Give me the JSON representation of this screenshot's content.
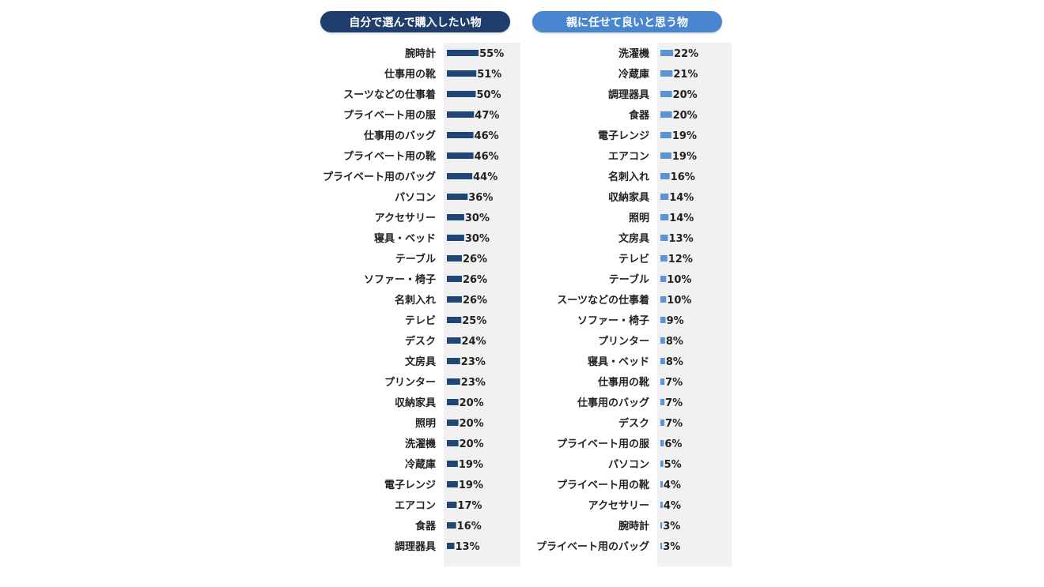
{
  "colors": {
    "left_bar": "#1e4676",
    "right_bar": "#5b93d6",
    "plot_bg": "#f1f1f1",
    "left_title_bg": "#1e3f6e",
    "right_title_bg": "#4a86cf"
  },
  "chart_data": [
    {
      "type": "bar",
      "orientation": "horizontal",
      "title": "自分で選んで購入したい物",
      "value_suffix": "%",
      "xlim": [
        0,
        100
      ],
      "grid": false,
      "categories": [
        "腕時計",
        "仕事用の靴",
        "スーツなどの仕事着",
        "プライベート用の服",
        "仕事用のバッグ",
        "プライベート用の靴",
        "プライベート用のバッグ",
        "パソコン",
        "アクセサリー",
        "寝具・ベッド",
        "テーブル",
        "ソファー・椅子",
        "名刺入れ",
        "テレビ",
        "デスク",
        "文房具",
        "プリンター",
        "収納家具",
        "照明",
        "洗濯機",
        "冷蔵庫",
        "電子レンジ",
        "エアコン",
        "食器",
        "調理器具"
      ],
      "values": [
        55,
        51,
        50,
        47,
        46,
        46,
        44,
        36,
        30,
        30,
        26,
        26,
        26,
        25,
        24,
        23,
        23,
        20,
        20,
        20,
        19,
        19,
        17,
        16,
        13
      ]
    },
    {
      "type": "bar",
      "orientation": "horizontal",
      "title": "親に任せて良いと思う物",
      "value_suffix": "%",
      "xlim": [
        0,
        100
      ],
      "grid": false,
      "categories": [
        "洗濯機",
        "冷蔵庫",
        "調理器具",
        "食器",
        "電子レンジ",
        "エアコン",
        "名刺入れ",
        "収納家具",
        "照明",
        "文房具",
        "テレビ",
        "テーブル",
        "スーツなどの仕事着",
        "ソファー・椅子",
        "プリンター",
        "寝具・ベッド",
        "仕事用の靴",
        "仕事用のバッグ",
        "デスク",
        "プライベート用の服",
        "パソコン",
        "プライベート用の靴",
        "アクセサリー",
        "腕時計",
        "プライベート用のバッグ"
      ],
      "values": [
        22,
        21,
        20,
        20,
        19,
        19,
        16,
        14,
        14,
        13,
        12,
        10,
        10,
        9,
        8,
        8,
        7,
        7,
        7,
        6,
        5,
        4,
        4,
        3,
        3
      ]
    }
  ]
}
